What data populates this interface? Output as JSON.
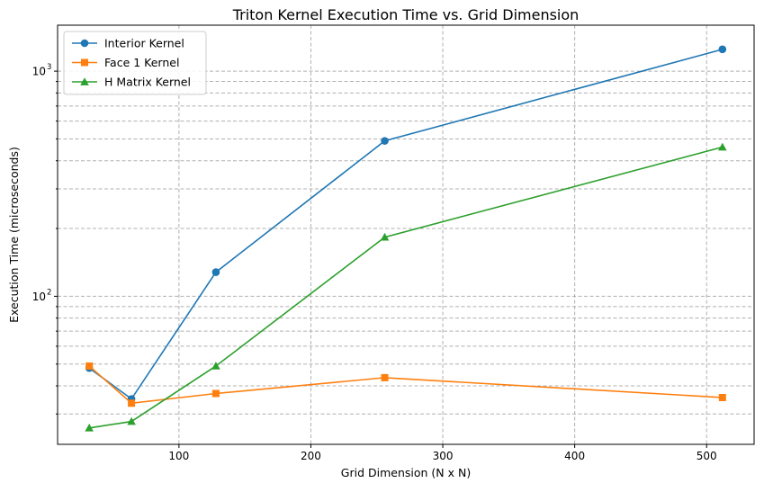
{
  "chart_data": {
    "type": "line",
    "title": "Triton Kernel Execution Time vs. Grid Dimension",
    "xlabel": "Grid Dimension (N x N)",
    "ylabel": "Execution Time (microseconds)",
    "x": [
      32,
      64,
      128,
      256,
      512
    ],
    "xlim": [
      8,
      536
    ],
    "ylim": [
      22,
      1600
    ],
    "yscale": "log",
    "grid": true,
    "legend_position": "top-left",
    "x_ticks": [
      100,
      200,
      300,
      400,
      500
    ],
    "x_tick_labels": [
      "100",
      "200",
      "300",
      "400",
      "500"
    ],
    "y_major_ticks": [
      100,
      1000
    ],
    "y_major_tick_labels": [
      {
        "base": "10",
        "exp": "2"
      },
      {
        "base": "10",
        "exp": "3"
      }
    ],
    "y_minor_ticks": [
      30,
      40,
      50,
      60,
      70,
      80,
      90,
      200,
      300,
      400,
      500,
      600,
      700,
      800,
      900
    ],
    "series": [
      {
        "name": "Interior Kernel",
        "color": "#1f77b4",
        "marker": "circle",
        "values": [
          48,
          35,
          128,
          490,
          1250
        ]
      },
      {
        "name": "Face 1 Kernel",
        "color": "#ff7f0e",
        "marker": "square",
        "values": [
          49,
          33.5,
          37,
          43.5,
          35.5
        ]
      },
      {
        "name": "H Matrix Kernel",
        "color": "#2ca02c",
        "marker": "triangle",
        "values": [
          26,
          27.8,
          49,
          183,
          460
        ]
      }
    ]
  }
}
